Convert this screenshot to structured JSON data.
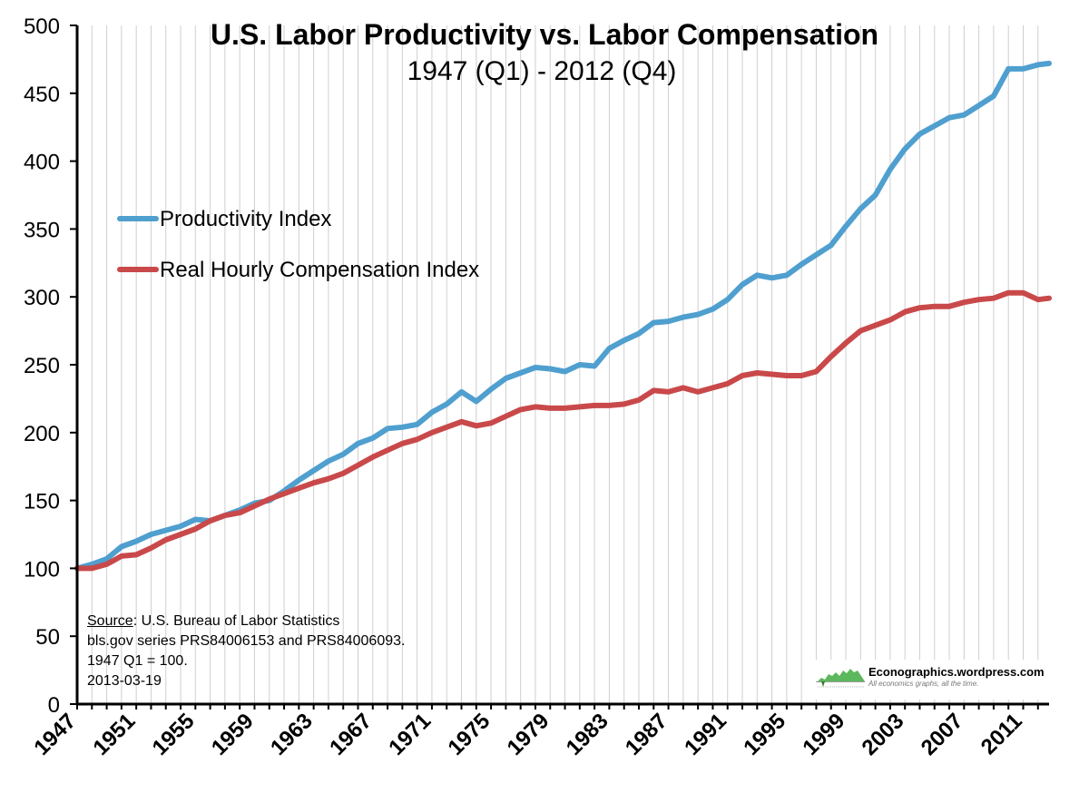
{
  "chart_data": {
    "type": "line",
    "title": "U.S. Labor Productivity vs. Labor Compensation",
    "subtitle": "1947 (Q1) - 2012 (Q4)",
    "xlabel": "",
    "ylabel": "",
    "xlim": [
      1947,
      2012.75
    ],
    "ylim": [
      0,
      500
    ],
    "y_ticks": [
      0,
      50,
      100,
      150,
      200,
      250,
      300,
      350,
      400,
      450,
      500
    ],
    "x_ticks": [
      "1947",
      "1951",
      "1955",
      "1959",
      "1963",
      "1967",
      "1971",
      "1975",
      "1979",
      "1983",
      "1987",
      "1991",
      "1995",
      "1999",
      "2003",
      "2007",
      "2011"
    ],
    "grid": "vertical",
    "legend_position": "upper-left",
    "series": [
      {
        "name": "Productivity Index",
        "color": "#4f9fcf",
        "x": [
          1947,
          1948,
          1949,
          1950,
          1951,
          1952,
          1953,
          1954,
          1955,
          1956,
          1957,
          1958,
          1959,
          1960,
          1961,
          1962,
          1963,
          1964,
          1965,
          1966,
          1967,
          1968,
          1969,
          1970,
          1971,
          1972,
          1973,
          1974,
          1975,
          1976,
          1977,
          1978,
          1979,
          1980,
          1981,
          1982,
          1983,
          1984,
          1985,
          1986,
          1987,
          1988,
          1989,
          1990,
          1991,
          1992,
          1993,
          1994,
          1995,
          1996,
          1997,
          1998,
          1999,
          2000,
          2001,
          2002,
          2003,
          2004,
          2005,
          2006,
          2007,
          2008,
          2009,
          2010,
          2011,
          2012,
          2012.75
        ],
        "values": [
          100,
          103,
          107,
          116,
          120,
          125,
          128,
          131,
          136,
          135,
          139,
          143,
          148,
          150,
          157,
          165,
          172,
          179,
          184,
          192,
          196,
          203,
          204,
          206,
          215,
          221,
          230,
          223,
          232,
          240,
          244,
          248,
          247,
          245,
          250,
          249,
          262,
          268,
          273,
          281,
          282,
          285,
          287,
          291,
          298,
          309,
          316,
          314,
          316,
          324,
          331,
          338,
          352,
          365,
          375,
          394,
          409,
          420,
          426,
          432,
          434,
          441,
          448,
          468,
          468,
          471,
          472
        ]
      },
      {
        "name": "Real Hourly Compensation Index",
        "color": "#c9494a",
        "x": [
          1947,
          1948,
          1949,
          1950,
          1951,
          1952,
          1953,
          1954,
          1955,
          1956,
          1957,
          1958,
          1959,
          1960,
          1961,
          1962,
          1963,
          1964,
          1965,
          1966,
          1967,
          1968,
          1969,
          1970,
          1971,
          1972,
          1973,
          1974,
          1975,
          1976,
          1977,
          1978,
          1979,
          1980,
          1981,
          1982,
          1983,
          1984,
          1985,
          1986,
          1987,
          1988,
          1989,
          1990,
          1991,
          1992,
          1993,
          1994,
          1995,
          1996,
          1997,
          1998,
          1999,
          2000,
          2001,
          2002,
          2003,
          2004,
          2005,
          2006,
          2007,
          2008,
          2009,
          2010,
          2011,
          2012,
          2012.75
        ],
        "values": [
          100,
          100,
          103,
          109,
          110,
          115,
          121,
          125,
          129,
          135,
          139,
          141,
          146,
          151,
          155,
          159,
          163,
          166,
          170,
          176,
          182,
          187,
          192,
          195,
          200,
          204,
          208,
          205,
          207,
          212,
          217,
          219,
          218,
          218,
          219,
          220,
          220,
          221,
          224,
          231,
          230,
          233,
          230,
          233,
          236,
          242,
          244,
          243,
          242,
          242,
          245,
          256,
          266,
          275,
          279,
          283,
          289,
          292,
          293,
          293,
          296,
          298,
          299,
          303,
          303,
          298,
          299
        ]
      }
    ]
  },
  "source_note": {
    "source_label": "Source",
    "source_text": ": U.S. Bureau of Labor Statistics",
    "series_line": "bls.gov series PRS84006153 and PRS84006093.",
    "base_line": "1947 Q1 = 100.",
    "date_line": "2013-03-19"
  },
  "logo": {
    "name": "Econographics.wordpress.com",
    "tagline": "All economics graphs, all the time."
  }
}
